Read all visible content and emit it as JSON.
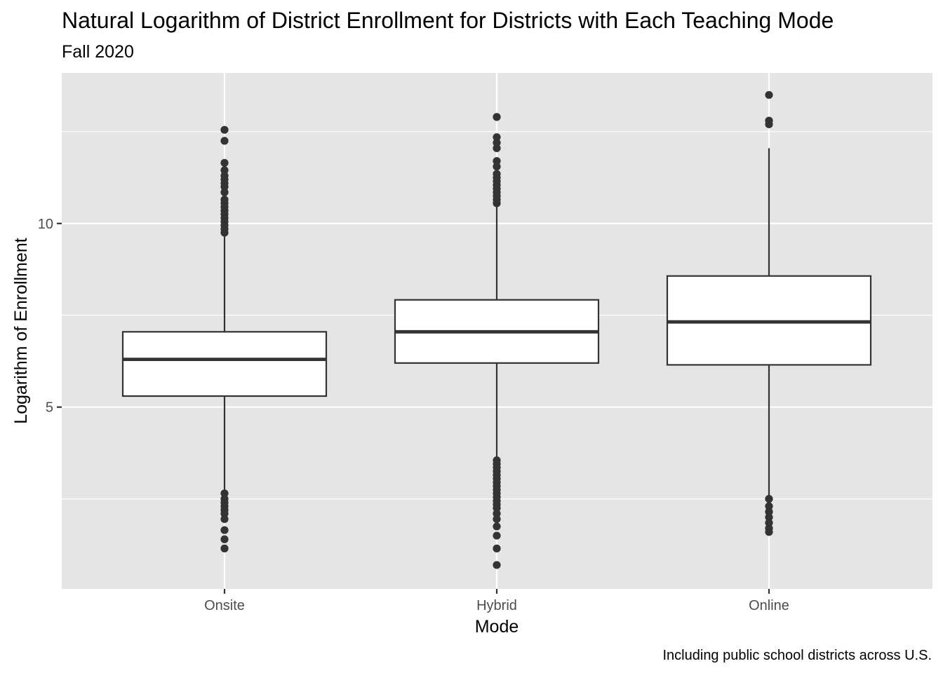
{
  "chart_data": {
    "type": "box",
    "title": "Natural Logarithm of District Enrollment for Districts with Each Teaching Mode",
    "subtitle": "Fall 2020",
    "xlabel": "Mode",
    "ylabel": "Logarithm of Enrollment",
    "caption": "Including public school districts across U.S.",
    "categories": [
      "Onsite",
      "Hybrid",
      "Online"
    ],
    "ylim": [
      0.05,
      14.1
    ],
    "y_ticks": [
      5,
      10
    ],
    "y_minor_ticks": [
      2.5,
      7.5,
      12.5
    ],
    "grid": true,
    "legend": "none",
    "colors": {
      "panel_background": "#e5e5e5",
      "grid": "#ffffff",
      "box_fill": "#ffffff",
      "box_outline": "#333333",
      "points": "#333333",
      "tick_label": "#4d4d4d",
      "tick_mark": "#333333"
    },
    "boxes": [
      {
        "category": "Onsite",
        "whisker_low": 2.6,
        "q1": 5.3,
        "median": 6.3,
        "q3": 7.05,
        "whisker_high": 9.7,
        "outliers": [
          2.65,
          2.5,
          2.4,
          2.3,
          2.2,
          2.1,
          1.95,
          1.65,
          1.4,
          1.15,
          9.75,
          9.85,
          9.95,
          10.05,
          10.15,
          10.25,
          10.35,
          10.45,
          10.55,
          10.65,
          10.85,
          11.0,
          11.1,
          11.2,
          11.3,
          11.45,
          11.65,
          12.25,
          12.55
        ]
      },
      {
        "category": "Hybrid",
        "whisker_low": 3.6,
        "q1": 6.2,
        "median": 7.05,
        "q3": 7.92,
        "whisker_high": 10.5,
        "outliers": [
          3.55,
          3.45,
          3.35,
          3.25,
          3.15,
          3.05,
          2.95,
          2.85,
          2.75,
          2.65,
          2.55,
          2.45,
          2.35,
          2.25,
          2.1,
          1.95,
          1.75,
          1.5,
          1.15,
          0.7,
          10.55,
          10.65,
          10.75,
          10.85,
          10.95,
          11.05,
          11.15,
          11.25,
          11.35,
          11.55,
          11.7,
          12.05,
          12.2,
          12.35,
          12.9
        ]
      },
      {
        "category": "Online",
        "whisker_low": 2.55,
        "q1": 6.15,
        "median": 7.32,
        "q3": 8.57,
        "whisker_high": 12.05,
        "outliers": [
          2.5,
          2.3,
          2.15,
          2.0,
          1.85,
          1.7,
          1.6,
          12.7,
          12.8,
          13.5
        ]
      }
    ]
  }
}
